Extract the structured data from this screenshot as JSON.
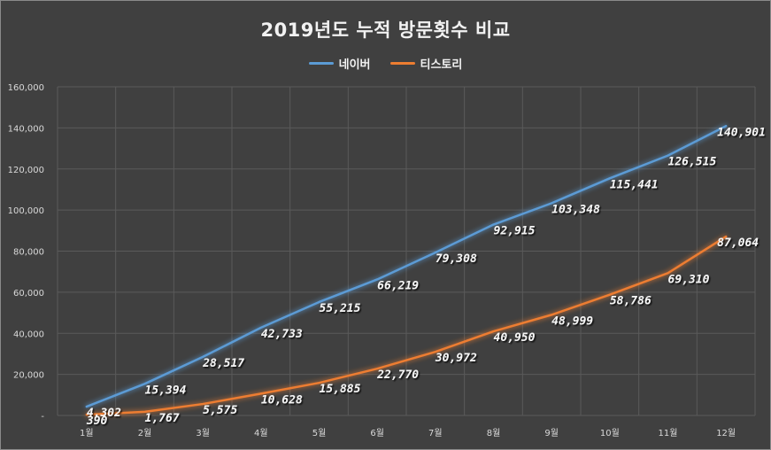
{
  "chart_data": {
    "type": "line",
    "title": "2019년도 누적 방문횟수 비교",
    "categories": [
      "1월",
      "2월",
      "3월",
      "4월",
      "5월",
      "6월",
      "7월",
      "8월",
      "9월",
      "10월",
      "11월",
      "12월"
    ],
    "series": [
      {
        "name": "네이버",
        "color": "#5b9bd5",
        "values": [
          4302,
          15394,
          28517,
          42733,
          55215,
          66219,
          79308,
          92915,
          103348,
          115441,
          126515,
          140901
        ],
        "labels": [
          "4,302",
          "15,394",
          "28,517",
          "42,733",
          "55,215",
          "66,219",
          "79,308",
          "92,915",
          "103,348",
          "115,441",
          "126,515",
          "140,901"
        ]
      },
      {
        "name": "티스토리",
        "color": "#ed7d31",
        "values": [
          390,
          1767,
          5575,
          10628,
          15885,
          22770,
          30972,
          40950,
          48999,
          58786,
          69310,
          87064
        ],
        "labels": [
          "390",
          "1,767",
          "5,575",
          "10,628",
          "15,885",
          "22,770",
          "30,972",
          "40,950",
          "48,999",
          "58,786",
          "69,310",
          "87,064"
        ]
      }
    ],
    "ylim": [
      0,
      160000
    ],
    "yticks": [
      0,
      20000,
      40000,
      60000,
      80000,
      100000,
      120000,
      140000,
      160000
    ],
    "ytick_labels": [
      "-",
      "20,000",
      "40,000",
      "60,000",
      "80,000",
      "100,000",
      "120,000",
      "140,000",
      "160,000"
    ],
    "grid": true,
    "legend_position": "top-center",
    "xlabel": "",
    "ylabel": ""
  }
}
